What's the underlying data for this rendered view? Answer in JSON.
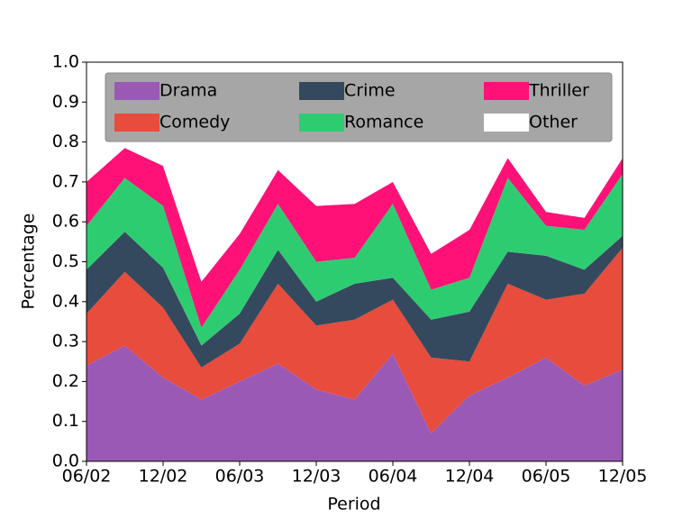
{
  "chart_data": {
    "type": "stacked_area",
    "x_label": "Period",
    "y_label": "Percentage",
    "categories": [
      "06/02",
      null,
      "12/02",
      null,
      "06/03",
      null,
      "12/03",
      null,
      "06/04",
      null,
      "12/04",
      null,
      "06/05",
      null,
      "12/05"
    ],
    "series": [
      {
        "name": "Drama",
        "color": "#9b59b6",
        "values": [
          0.24,
          0.29,
          0.21,
          0.155,
          0.2,
          0.245,
          0.18,
          0.155,
          0.27,
          0.07,
          0.165,
          0.21,
          0.26,
          0.19,
          0.23
        ]
      },
      {
        "name": "Comedy",
        "color": "#e74c3c",
        "values": [
          0.13,
          0.185,
          0.175,
          0.08,
          0.095,
          0.2,
          0.16,
          0.2,
          0.135,
          0.19,
          0.085,
          0.235,
          0.145,
          0.23,
          0.305
        ]
      },
      {
        "name": "Crime",
        "color": "#34495e",
        "values": [
          0.11,
          0.1,
          0.1,
          0.055,
          0.075,
          0.085,
          0.06,
          0.09,
          0.055,
          0.095,
          0.125,
          0.08,
          0.11,
          0.06,
          0.03
        ]
      },
      {
        "name": "Romance",
        "color": "#2ecc71",
        "values": [
          0.11,
          0.135,
          0.155,
          0.045,
          0.11,
          0.115,
          0.1,
          0.065,
          0.185,
          0.075,
          0.085,
          0.185,
          0.075,
          0.1,
          0.155
        ]
      },
      {
        "name": "Thriller",
        "color": "#ff1177",
        "values": [
          0.11,
          0.075,
          0.1,
          0.115,
          0.09,
          0.085,
          0.14,
          0.135,
          0.055,
          0.09,
          0.12,
          0.05,
          0.035,
          0.03,
          0.04
        ]
      },
      {
        "name": "Other",
        "color": "#ffffff",
        "values": [
          0.3,
          0.215,
          0.26,
          0.55,
          0.43,
          0.27,
          0.36,
          0.355,
          0.3,
          0.48,
          0.42,
          0.24,
          0.375,
          0.39,
          0.24
        ]
      }
    ],
    "ylim": [
      0,
      1
    ],
    "yticks": [
      {
        "value": 0,
        "label": "0.0"
      },
      {
        "value": 0.1,
        "label": "0.1"
      },
      {
        "value": 0.2,
        "label": "0.2"
      },
      {
        "value": 0.3,
        "label": "0.3"
      },
      {
        "value": 0.4,
        "label": "0.4"
      },
      {
        "value": 0.5,
        "label": "0.5"
      },
      {
        "value": 0.6,
        "label": "0.6"
      },
      {
        "value": 0.7,
        "label": "0.7"
      },
      {
        "value": 0.8,
        "label": "0.8"
      },
      {
        "value": 0.9,
        "label": "0.9"
      },
      {
        "value": 1,
        "label": "1.0"
      }
    ],
    "legend": "top",
    "legend_background": "#a6a6a6"
  }
}
